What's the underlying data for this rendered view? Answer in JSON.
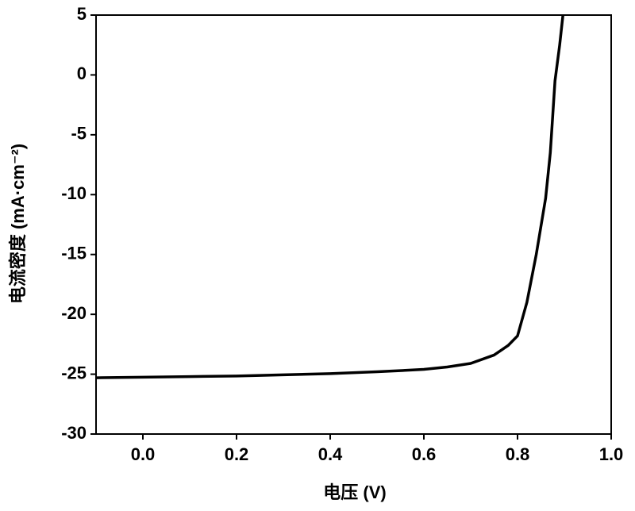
{
  "chart_data": {
    "type": "line",
    "x_label": "电压 (V)",
    "y_label": "电流密度 (mA·cm⁻²)",
    "series": [
      {
        "color": "#000000",
        "x": [
          -0.1,
          0.0,
          0.1,
          0.2,
          0.3,
          0.4,
          0.5,
          0.6,
          0.65,
          0.7,
          0.75,
          0.78,
          0.8,
          0.82,
          0.84,
          0.86,
          0.87,
          0.88,
          0.89,
          0.897
        ],
        "values": [
          -25.3,
          -25.25,
          -25.2,
          -25.15,
          -25.05,
          -24.95,
          -24.8,
          -24.6,
          -24.4,
          -24.1,
          -23.4,
          -22.6,
          -21.8,
          -19.0,
          -15.0,
          -10.3,
          -6.5,
          -0.5,
          2.5,
          5.0
        ]
      }
    ],
    "xlim": [
      -0.1,
      1.0
    ],
    "xticks": [
      {
        "value": 0,
        "label": "0.0"
      },
      {
        "value": 0.2,
        "label": "0.2"
      },
      {
        "value": 0.4,
        "label": "0.4"
      },
      {
        "value": 0.6,
        "label": "0.6"
      },
      {
        "value": 0.8,
        "label": "0.8"
      },
      {
        "value": 1.0,
        "label": "1.0"
      }
    ],
    "ylim": [
      -30,
      5
    ],
    "yticks": [
      -30,
      -25,
      -20,
      -15,
      -10,
      -5,
      0,
      5
    ],
    "grid": false
  }
}
